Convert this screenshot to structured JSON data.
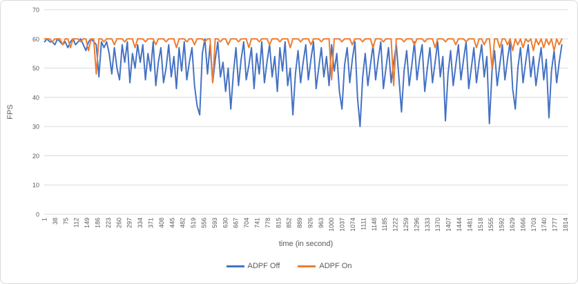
{
  "chart_data": {
    "type": "line",
    "title": "",
    "xlabel": "time (in second)",
    "ylabel": "FPS",
    "ylim": [
      0,
      70
    ],
    "y_ticks": [
      0,
      10,
      20,
      30,
      40,
      50,
      60,
      70
    ],
    "x_range": [
      1,
      1814
    ],
    "x_tick_labels": [
      1,
      38,
      75,
      112,
      149,
      186,
      223,
      260,
      297,
      334,
      371,
      408,
      445,
      482,
      519,
      556,
      593,
      630,
      667,
      704,
      741,
      778,
      815,
      852,
      889,
      926,
      963,
      1000,
      1037,
      1074,
      1111,
      1148,
      1185,
      1222,
      1259,
      1296,
      1333,
      1370,
      1407,
      1444,
      1481,
      1518,
      1555,
      1592,
      1629,
      1666,
      1703,
      1740,
      1777,
      1814
    ],
    "grid": "horizontal",
    "legend_position": "bottom",
    "note": "FPS traces sampled every 9 seconds from the ~1814-second run; values estimated from gridlines",
    "x_sample": {
      "start": 1,
      "step": 9,
      "count": 201
    },
    "colors": {
      "adpf_off": "#4472C4",
      "adpf_on": "#ED7D31",
      "gridline": "#D9D9D9",
      "axis_text": "#595959",
      "border": "#D9D9D9"
    },
    "legend": {
      "items": [
        {
          "label": "ADPF Off",
          "color": "#4472C4"
        },
        {
          "label": "ADPF On",
          "color": "#ED7D31"
        }
      ]
    },
    "series": [
      {
        "name": "ADPF Off",
        "color": "#4472C4",
        "values": [
          59,
          60,
          59,
          59,
          58,
          60,
          59,
          58,
          59,
          57,
          59,
          60,
          58,
          59,
          60,
          58,
          56,
          59,
          60,
          59,
          58,
          47,
          59,
          57,
          59,
          55,
          48,
          57,
          50,
          46,
          58,
          52,
          59,
          45,
          55,
          50,
          58,
          52,
          58,
          46,
          55,
          49,
          59,
          44,
          52,
          57,
          45,
          50,
          58,
          47,
          54,
          43,
          57,
          49,
          59,
          46,
          52,
          57,
          44,
          37,
          34,
          55,
          60,
          48,
          58,
          45,
          53,
          59,
          47,
          52,
          42,
          50,
          36,
          48,
          57,
          44,
          53,
          59,
          46,
          51,
          57,
          43,
          55,
          48,
          59,
          45,
          52,
          58,
          47,
          54,
          42,
          57,
          49,
          59,
          44,
          50,
          34,
          48,
          56,
          45,
          52,
          58,
          46,
          53,
          59,
          43,
          50,
          57,
          47,
          54,
          44,
          58,
          49,
          55,
          42,
          36,
          51,
          57,
          45,
          53,
          59,
          40,
          30,
          47,
          55,
          44,
          51,
          58,
          46,
          53,
          59,
          43,
          50,
          57,
          45,
          52,
          58,
          47,
          35,
          49,
          56,
          44,
          51,
          59,
          46,
          53,
          58,
          42,
          50,
          57,
          45,
          52,
          59,
          47,
          54,
          32,
          48,
          56,
          44,
          51,
          58,
          46,
          53,
          59,
          43,
          50,
          57,
          45,
          52,
          58,
          47,
          54,
          31,
          49,
          56,
          44,
          51,
          58,
          46,
          53,
          59,
          43,
          36,
          50,
          57,
          45,
          52,
          58,
          47,
          54,
          44,
          51,
          57,
          46,
          53,
          33,
          49,
          56,
          45,
          52,
          58
        ]
      },
      {
        "name": "ADPF On",
        "color": "#ED7D31",
        "values": [
          60,
          60,
          60,
          59,
          60,
          60,
          60,
          58,
          60,
          60,
          57,
          60,
          60,
          60,
          59,
          60,
          60,
          56,
          60,
          60,
          48,
          60,
          60,
          59,
          60,
          60,
          60,
          58,
          60,
          60,
          60,
          59,
          60,
          60,
          60,
          57,
          60,
          60,
          60,
          59,
          60,
          60,
          60,
          58,
          60,
          60,
          60,
          59,
          60,
          60,
          60,
          57,
          60,
          60,
          60,
          59,
          60,
          60,
          58,
          60,
          60,
          60,
          59,
          60,
          60,
          45,
          60,
          60,
          59,
          60,
          60,
          58,
          60,
          60,
          60,
          59,
          60,
          60,
          60,
          57,
          60,
          60,
          60,
          59,
          60,
          60,
          60,
          58,
          60,
          60,
          60,
          59,
          60,
          60,
          60,
          57,
          60,
          60,
          60,
          59,
          60,
          60,
          60,
          58,
          60,
          60,
          60,
          59,
          60,
          60,
          60,
          46,
          60,
          60,
          60,
          59,
          60,
          60,
          60,
          58,
          60,
          60,
          60,
          59,
          60,
          60,
          60,
          57,
          60,
          60,
          60,
          59,
          60,
          60,
          60,
          44,
          60,
          60,
          60,
          59,
          60,
          60,
          60,
          58,
          60,
          60,
          60,
          59,
          60,
          60,
          60,
          57,
          60,
          60,
          60,
          59,
          60,
          60,
          60,
          58,
          60,
          60,
          60,
          59,
          60,
          60,
          60,
          57,
          60,
          60,
          58,
          60,
          60,
          50,
          60,
          60,
          57,
          60,
          60,
          58,
          60,
          56,
          60,
          58,
          60,
          57,
          60,
          59,
          60,
          56,
          60,
          58,
          60,
          57,
          60,
          58,
          60,
          56,
          60,
          58,
          60
        ]
      }
    ]
  }
}
